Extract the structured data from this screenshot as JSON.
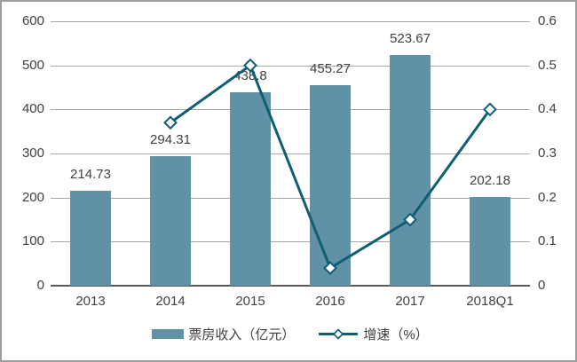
{
  "chart_data": {
    "type": "bar+line",
    "title": "",
    "categories": [
      "2013",
      "2014",
      "2015",
      "2016",
      "2017",
      "2018Q1"
    ],
    "series": [
      {
        "name": "票房收入（亿元）",
        "type": "bar",
        "axis": "left",
        "values": [
          214.73,
          294.31,
          438.8,
          455.27,
          523.67,
          202.18
        ],
        "data_labels": [
          "214.73",
          "294.31",
          "438.8",
          "455.27",
          "523.67",
          "202.18"
        ]
      },
      {
        "name": "增速（%）",
        "type": "line",
        "axis": "right",
        "marker": "diamond",
        "values": [
          null,
          0.37,
          0.5,
          0.04,
          0.15,
          0.4
        ]
      }
    ],
    "left_axis": {
      "min": 0,
      "max": 600,
      "ticks": [
        "600",
        "500",
        "400",
        "300",
        "200",
        "100",
        "0"
      ]
    },
    "right_axis": {
      "min": 0,
      "max": 0.6,
      "ticks": [
        "0.6",
        "0.5",
        "0.4",
        "0.3",
        "0.2",
        "0.1",
        "0"
      ]
    },
    "grid": true,
    "legend_position": "bottom"
  },
  "colors": {
    "bar": "#6191a7",
    "line": "#0d5f73",
    "marker_fill": "#ffffff",
    "grid": "#a6a6a6",
    "zero_axis": "#595959",
    "text": "#404040",
    "frame": "#9e9e9e",
    "background": "#ffffff"
  },
  "legend": {
    "bar_label": "票房收入（亿元）",
    "line_label": "增速（%）"
  }
}
